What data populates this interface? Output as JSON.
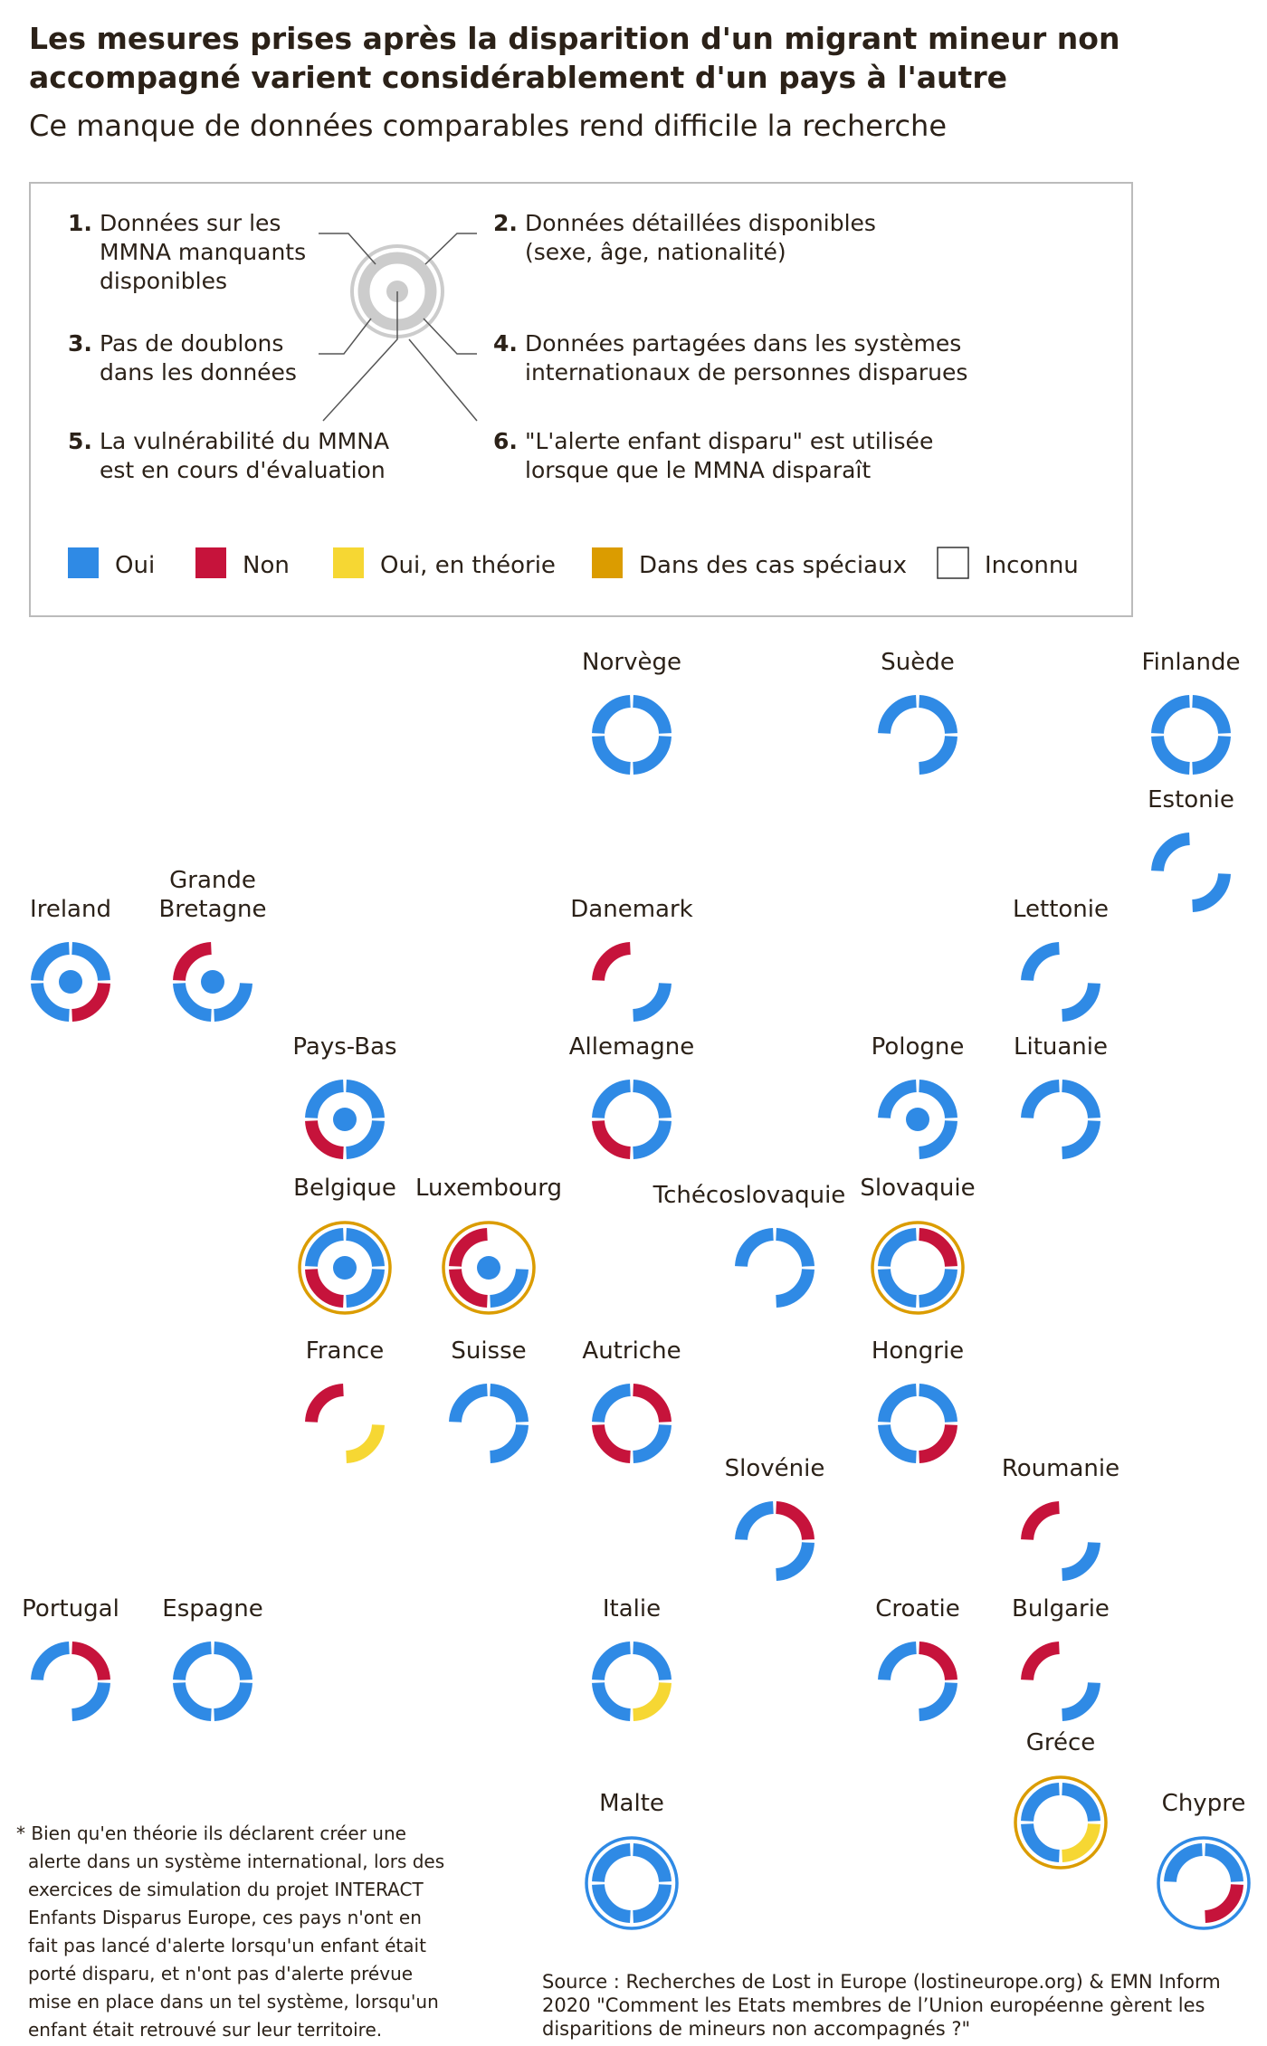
{
  "header": {
    "title": [
      "Les mesures prises après la disparition d'un migrant mineur non",
      "accompagné varient considérablement d'un pays à l'autre"
    ],
    "subtitle": "Ce manque de données comparables rend difficile la recherche"
  },
  "criteria": [
    {
      "number": "1.",
      "lines": [
        "Données sur les",
        "MMNA manquants",
        "disponibles"
      ]
    },
    {
      "number": "2.",
      "lines": [
        "Données détaillées disponibles",
        "(sexe, âge, nationalité)"
      ]
    },
    {
      "number": "3.",
      "lines": [
        "Pas de doublons",
        "dans les données"
      ]
    },
    {
      "number": "4.",
      "lines": [
        "Données partagées dans les systèmes",
        "internationaux de personnes disparues"
      ]
    },
    {
      "number": "5.",
      "lines": [
        "La vulnérabilité du MMNA",
        "est en cours d'évaluation"
      ]
    },
    {
      "number": "6.",
      "lines": [
        "\"L'alerte enfant disparu\" est utilisée",
        "lorsque que le MMNA disparaît"
      ]
    }
  ],
  "legend": [
    {
      "label": "Oui",
      "color": "#2f8ae5"
    },
    {
      "label": "Non",
      "color": "#c6133b"
    },
    {
      "label": "Oui, en théorie",
      "color": "#f6d733"
    },
    {
      "label": "Dans des cas spéciaux",
      "color": "#db9c00"
    },
    {
      "label": "Inconnu",
      "color": "#ffffff"
    }
  ],
  "countries": [
    {
      "name": "Norvège",
      "criteria": [
        0,
        0,
        0,
        0,
        null,
        null
      ]
    },
    {
      "name": "Suède",
      "criteria": [
        0,
        0,
        null,
        0,
        null,
        null
      ]
    },
    {
      "name": "Finlande",
      "criteria": [
        0,
        0,
        0,
        0,
        null,
        null
      ]
    },
    {
      "name": "Estonie",
      "criteria": [
        0,
        null,
        null,
        0,
        null,
        null
      ]
    },
    {
      "name": "Ireland",
      "criteria": [
        0,
        0,
        0,
        1,
        0,
        null
      ]
    },
    {
      "name": [
        "Grande",
        "Bretagne"
      ],
      "criteria": [
        1,
        null,
        0,
        0,
        0,
        null
      ]
    },
    {
      "name": "Danemark",
      "criteria": [
        1,
        null,
        null,
        0,
        null,
        null
      ]
    },
    {
      "name": "Lettonie",
      "criteria": [
        0,
        null,
        null,
        0,
        null,
        null
      ]
    },
    {
      "name": "Pays-Bas",
      "criteria": [
        0,
        0,
        1,
        0,
        0,
        null
      ]
    },
    {
      "name": "Allemagne",
      "criteria": [
        0,
        0,
        1,
        0,
        null,
        null
      ]
    },
    {
      "name": "Pologne",
      "criteria": [
        0,
        0,
        null,
        0,
        0,
        null
      ]
    },
    {
      "name": "Lituanie",
      "criteria": [
        0,
        0,
        null,
        0,
        null,
        null
      ]
    },
    {
      "name": "Belgique",
      "criteria": [
        0,
        0,
        1,
        0,
        0,
        3
      ]
    },
    {
      "name": "Luxembourg",
      "criteria": [
        1,
        null,
        1,
        0,
        0,
        3
      ]
    },
    {
      "name": "Tchécoslovaquie",
      "criteria": [
        0,
        0,
        null,
        0,
        null,
        null
      ]
    },
    {
      "name": "Slovaquie",
      "criteria": [
        0,
        1,
        0,
        0,
        null,
        3
      ]
    },
    {
      "name": "France",
      "criteria": [
        1,
        null,
        null,
        2,
        null,
        null
      ]
    },
    {
      "name": "Suisse",
      "criteria": [
        0,
        0,
        null,
        0,
        null,
        null
      ]
    },
    {
      "name": "Autriche",
      "criteria": [
        0,
        1,
        1,
        0,
        null,
        null
      ]
    },
    {
      "name": "Hongrie",
      "criteria": [
        0,
        0,
        0,
        1,
        null,
        null
      ]
    },
    {
      "name": "Slovénie",
      "criteria": [
        0,
        1,
        null,
        0,
        null,
        null
      ]
    },
    {
      "name": "Roumanie",
      "criteria": [
        1,
        null,
        null,
        0,
        null,
        null
      ]
    },
    {
      "name": "Portugal",
      "criteria": [
        0,
        1,
        null,
        0,
        null,
        null
      ]
    },
    {
      "name": "Espagne",
      "criteria": [
        0,
        0,
        0,
        0,
        null,
        null
      ]
    },
    {
      "name": "Italie",
      "criteria": [
        0,
        0,
        0,
        2,
        null,
        null
      ]
    },
    {
      "name": "Croatie",
      "criteria": [
        0,
        1,
        null,
        0,
        null,
        null
      ]
    },
    {
      "name": "Bulgarie",
      "criteria": [
        1,
        null,
        null,
        0,
        null,
        null
      ]
    },
    {
      "name": "Gréce",
      "criteria": [
        0,
        0,
        0,
        2,
        null,
        3
      ]
    },
    {
      "name": "Malte",
      "criteria": [
        0,
        0,
        0,
        0,
        null,
        0
      ]
    },
    {
      "name": "Chypre",
      "criteria": [
        0,
        0,
        null,
        1,
        null,
        0
      ]
    }
  ],
  "footnote": [
    "* Bien qu'en théorie ils déclarent créer une",
    "alerte dans un système international, lors des",
    "exercices de simulation du projet INTERACT",
    "Enfants Disparus Europe, ces pays n'ont en",
    "fait pas lancé d'alerte lorsqu'un enfant était",
    "porté disparu, et n'ont pas d'alerte prévue",
    "mise en place dans un tel système, lorsqu'un",
    "enfant était retrouvé sur leur territoire."
  ],
  "source": [
    "Source : Recherches de Lost in Europe (lostineurope.org) & EMN Inform",
    "2020 \"Comment les Etats membres de l’Union européenne gèrent les",
    "disparitions de mineurs non accompagnés ?\""
  ]
}
